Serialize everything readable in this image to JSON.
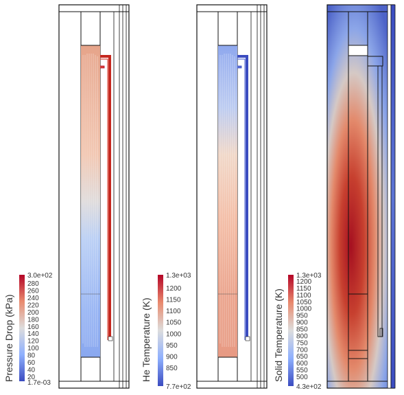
{
  "panels": [
    {
      "id": "pressure",
      "colorbar_title": "Pressure Drop (kPa)",
      "colorbar_min_label": "1.7e-03",
      "colorbar_max_label": "3.0e+02",
      "colorbar_ticks": [
        "280",
        "260",
        "240",
        "220",
        "200",
        "180",
        "160",
        "140",
        "120",
        "100",
        "80",
        "60",
        "40",
        "20"
      ]
    },
    {
      "id": "he-temperature",
      "colorbar_title": "He Temperature (K)",
      "colorbar_min_label": "7.7e+02",
      "colorbar_max_label": "1.3e+03",
      "colorbar_ticks": [
        "1200",
        "1150",
        "1100",
        "1050",
        "1000",
        "950",
        "900",
        "850"
      ]
    },
    {
      "id": "solid-temperature",
      "colorbar_title": "Solid Temperature (K)",
      "colorbar_min_label": "4.3e+02",
      "colorbar_max_label": "1.3e+03",
      "colorbar_ticks": [
        "1200",
        "1150",
        "1100",
        "1050",
        "1000",
        "950",
        "900",
        "850",
        "800",
        "750",
        "700",
        "650",
        "600",
        "550",
        "500"
      ]
    }
  ],
  "colormap": {
    "low": "#3b4cc0",
    "mid": "#dddddd",
    "high": "#b40426"
  }
}
